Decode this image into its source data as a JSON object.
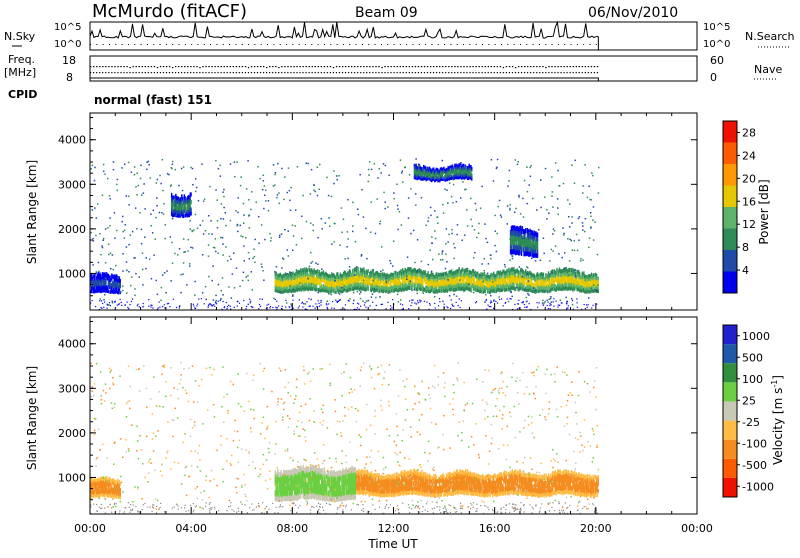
{
  "header": {
    "station": "McMurdo (fitACF)",
    "beam": "Beam 09",
    "date": "06/Nov/2010"
  },
  "top_panels": {
    "nsky_label": "N.Sky",
    "nsky_ticks": [
      "10^5",
      "10^0"
    ],
    "nsearch_label": "N.Search",
    "freq_label": "Freq.",
    "freq_unit": "[MHz]",
    "freq_ticks": [
      "18",
      "8"
    ],
    "nave_label": "Nave",
    "nave_ticks": [
      "60",
      "0"
    ],
    "cpid_label": "CPID",
    "cpid_value": "normal (fast) 151"
  },
  "colors": {
    "power_scale": [
      "#0000ee",
      "#1f4aa8",
      "#2e8b57",
      "#5db36a",
      "#e5c800",
      "#ff9900",
      "#ff5a00",
      "#ee1100"
    ],
    "velocity_scale": [
      "#ee1100",
      "#ff5a00",
      "#f58c1e",
      "#ffbb44",
      "#c8c8b4",
      "#6ccf42",
      "#2f8f3f",
      "#1e5aa8",
      "#2020cc"
    ]
  },
  "chart_data": [
    {
      "type": "heatmap",
      "title": "",
      "xlabel": "",
      "ylabel": "Slant Range [km]",
      "xlim_hours": [
        0,
        24
      ],
      "ylim": [
        180,
        4600
      ],
      "y_ticks": [
        "4000",
        "3000",
        "2000",
        "1000"
      ],
      "y_tick_values": [
        4000,
        3000,
        2000,
        1000
      ],
      "colorbar": {
        "label": "Power [dB]",
        "ticks": [
          "28",
          "24",
          "20",
          "16",
          "12",
          "8",
          "4"
        ],
        "tick_values": [
          28,
          24,
          20,
          16,
          12,
          8,
          4
        ],
        "range": [
          0,
          30
        ]
      },
      "data_end_hours": 20.1,
      "features": [
        {
          "name": "main-echo-band",
          "t_start": 7.3,
          "t_end": 20.1,
          "range_low": 600,
          "range_high": 1050,
          "power_db": 22
        },
        {
          "name": "early-band",
          "t_start": 0.0,
          "t_end": 1.2,
          "range_low": 550,
          "range_high": 950,
          "power_db": 8
        },
        {
          "name": "patch-0330",
          "t_start": 3.2,
          "t_end": 4.0,
          "range_low": 2300,
          "range_high": 2800,
          "power_db": 12
        },
        {
          "name": "patch-1400",
          "t_start": 12.8,
          "t_end": 15.1,
          "range_low": 3100,
          "range_high": 3400,
          "power_db": 12
        },
        {
          "name": "patch-1700",
          "t_start": 16.6,
          "t_end": 17.7,
          "range_low": 1400,
          "range_high": 2000,
          "power_db": 12
        }
      ]
    },
    {
      "type": "heatmap",
      "title": "",
      "xlabel": "Time UT",
      "ylabel": "Slant Range [km]",
      "xlim_hours": [
        0,
        24
      ],
      "ylim": [
        180,
        4600
      ],
      "x_ticks": [
        "00:00",
        "04:00",
        "08:00",
        "12:00",
        "16:00",
        "20:00",
        "00:00"
      ],
      "x_tick_values": [
        0,
        4,
        8,
        12,
        16,
        20,
        24
      ],
      "y_ticks": [
        "4000",
        "3000",
        "2000",
        "1000"
      ],
      "y_tick_values": [
        4000,
        3000,
        2000,
        1000
      ],
      "colorbar": {
        "label": "Velocity [m s",
        "label_sup": "-1",
        "label_end": "]",
        "ticks": [
          "1000",
          "500",
          "100",
          "25",
          "-25",
          "-100",
          "-500",
          "-1000"
        ],
        "tick_values": [
          1000,
          500,
          100,
          25,
          -25,
          -100,
          -500,
          -1000
        ]
      },
      "data_end_hours": 20.1,
      "features": [
        {
          "name": "main-echo-band-east",
          "t_start": 10.5,
          "t_end": 20.1,
          "range_low": 600,
          "range_high": 1100,
          "velocity": -150
        },
        {
          "name": "main-echo-band-west",
          "t_start": 7.3,
          "t_end": 10.5,
          "range_low": 500,
          "range_high": 1200,
          "velocity": 80
        },
        {
          "name": "early-band",
          "t_start": 0.0,
          "t_end": 1.2,
          "range_low": 550,
          "range_high": 950,
          "velocity": -150
        }
      ]
    }
  ]
}
